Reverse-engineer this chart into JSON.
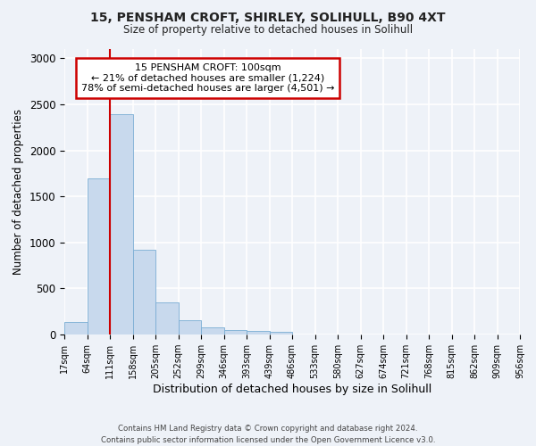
{
  "title": "15, PENSHAM CROFT, SHIRLEY, SOLIHULL, B90 4XT",
  "subtitle": "Size of property relative to detached houses in Solihull",
  "xlabel": "Distribution of detached houses by size in Solihull",
  "ylabel": "Number of detached properties",
  "bar_values": [
    140,
    1700,
    2390,
    920,
    350,
    155,
    80,
    50,
    35,
    25,
    0,
    0,
    0,
    0,
    0,
    0,
    0,
    0,
    0,
    0
  ],
  "bar_labels": [
    "17sqm",
    "64sqm",
    "111sqm",
    "158sqm",
    "205sqm",
    "252sqm",
    "299sqm",
    "346sqm",
    "393sqm",
    "439sqm",
    "486sqm",
    "533sqm",
    "580sqm",
    "627sqm",
    "674sqm",
    "721sqm",
    "768sqm",
    "815sqm",
    "862sqm",
    "909sqm",
    "956sqm"
  ],
  "bar_color": "#c8d9ed",
  "bar_edge_color": "#7aadd4",
  "property_line_x": 2.0,
  "property_line_color": "#cc0000",
  "annotation_text": "15 PENSHAM CROFT: 100sqm\n← 21% of detached houses are smaller (1,224)\n78% of semi-detached houses are larger (4,501) →",
  "annotation_box_color": "#ffffff",
  "annotation_box_edge": "#cc0000",
  "ylim": [
    0,
    3100
  ],
  "yticks": [
    0,
    500,
    1000,
    1500,
    2000,
    2500,
    3000
  ],
  "footer_text": "Contains HM Land Registry data © Crown copyright and database right 2024.\nContains public sector information licensed under the Open Government Licence v3.0.",
  "bg_color": "#eef2f8",
  "grid_color": "#ffffff"
}
